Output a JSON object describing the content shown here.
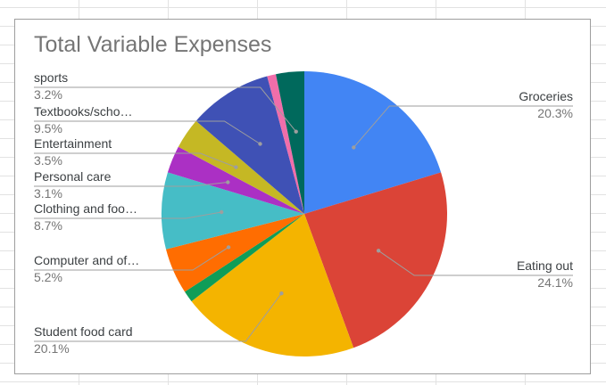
{
  "chart_data": {
    "type": "pie",
    "title": "Total Variable Expenses",
    "slices": [
      {
        "label": "Groceries",
        "percent": 20.3,
        "percent_text": "20.3%",
        "color": "#4285f4",
        "side": "right"
      },
      {
        "label": "Eating out",
        "percent": 24.1,
        "percent_text": "24.1%",
        "color": "#db4437",
        "side": "right"
      },
      {
        "label": "Student food card",
        "percent": 20.1,
        "percent_text": "20.1%",
        "color": "#f4b400",
        "side": "left"
      },
      {
        "label": "",
        "percent": 1.3,
        "percent_text": "",
        "color": "#0f9d58",
        "side": "none"
      },
      {
        "label": "Computer and of…",
        "percent": 5.2,
        "percent_text": "5.2%",
        "color": "#ff6d01",
        "side": "left"
      },
      {
        "label": "Clothing and foo…",
        "percent": 8.7,
        "percent_text": "8.7%",
        "color": "#46bdc6",
        "side": "left"
      },
      {
        "label": "Personal care",
        "percent": 3.1,
        "percent_text": "3.1%",
        "color": "#ab30c4",
        "side": "left"
      },
      {
        "label": "Entertainment",
        "percent": 3.5,
        "percent_text": "3.5%",
        "color": "#c5b824",
        "side": "left"
      },
      {
        "label": "Textbooks/scho…",
        "percent": 9.5,
        "percent_text": "9.5%",
        "color": "#3f51b5",
        "side": "left"
      },
      {
        "label": "",
        "percent": 1.0,
        "percent_text": "",
        "color": "#f06eaa",
        "side": "none"
      },
      {
        "label": "sports",
        "percent": 3.2,
        "percent_text": "3.2%",
        "color": "#00695c",
        "side": "left"
      }
    ],
    "legend": "none",
    "slice_labels": "callouts"
  }
}
